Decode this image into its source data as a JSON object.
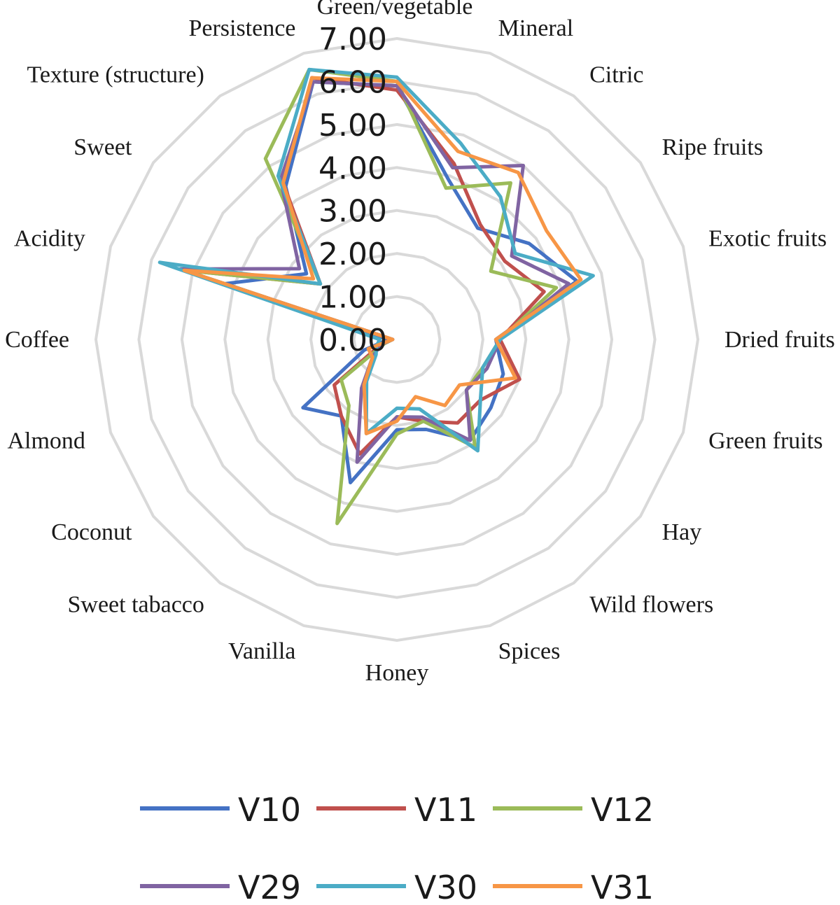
{
  "chart_data": {
    "type": "radar",
    "title": "",
    "rlim": [
      0,
      7
    ],
    "ticks": [
      "0.00",
      "1.00",
      "2.00",
      "3.00",
      "4.00",
      "5.00",
      "6.00",
      "7.00"
    ],
    "grid": true,
    "legend_position": "bottom",
    "categories": [
      "Green/vegetable",
      "Mineral",
      "Citric",
      "Ripe fruits",
      "Exotic fruits",
      "Dried fruits",
      "Green fruits",
      "Hay",
      "Wild flowers",
      "Spices",
      "Honey",
      "Vanilla",
      "Sweet tabacco",
      "Coconut",
      "Almond",
      "Coffee",
      "Acidity",
      "Sweet",
      "Texture (structure)",
      "Persistence"
    ],
    "series": [
      {
        "name": "V10",
        "color": "#4472C4",
        "values": [
          5.9,
          3.9,
          3.2,
          3.8,
          4.4,
          2.3,
          2.6,
          2.7,
          2.9,
          2.2,
          2.1,
          3.5,
          2.2,
          2.7,
          0.8,
          0.2,
          4.2,
          2.6,
          4.4,
          6.3
        ]
      },
      {
        "name": "V11",
        "color": "#C0504D",
        "values": [
          5.8,
          4.3,
          3.3,
          3.1,
          3.6,
          2.4,
          3.0,
          2.4,
          2.4,
          2.0,
          1.8,
          2.8,
          2.2,
          1.8,
          0.4,
          0.1,
          5.2,
          2.2,
          4.5,
          6.4
        ]
      },
      {
        "name": "V12",
        "color": "#9BBB59",
        "values": [
          6.0,
          3.7,
          4.5,
          2.7,
          3.9,
          2.4,
          2.1,
          2.0,
          3.1,
          2.0,
          2.2,
          4.5,
          1.9,
          1.6,
          0.3,
          0.1,
          5.2,
          2.2,
          5.2,
          6.6
        ]
      },
      {
        "name": "V29",
        "color": "#8064A2",
        "values": [
          5.9,
          4.2,
          5.0,
          3.3,
          4.2,
          2.4,
          2.2,
          2.0,
          2.9,
          1.9,
          1.8,
          3.0,
          1.4,
          0.7,
          0.4,
          0.1,
          5.3,
          2.8,
          4.6,
          6.3
        ]
      },
      {
        "name": "V30",
        "color": "#4BACC6",
        "values": [
          6.1,
          4.8,
          4.1,
          3.4,
          4.8,
          2.4,
          2.1,
          2.4,
          3.2,
          1.7,
          1.6,
          2.3,
          1.2,
          0.6,
          0.5,
          0.4,
          5.8,
          2.2,
          4.7,
          6.6
        ]
      },
      {
        "name": "V31",
        "color": "#F79646",
        "values": [
          6.0,
          4.6,
          4.8,
          4.3,
          4.5,
          2.3,
          2.9,
          1.8,
          1.9,
          1.4,
          1.9,
          2.3,
          1.3,
          0.7,
          0.7,
          0.1,
          5.2,
          2.4,
          4.5,
          6.4
        ]
      }
    ]
  }
}
